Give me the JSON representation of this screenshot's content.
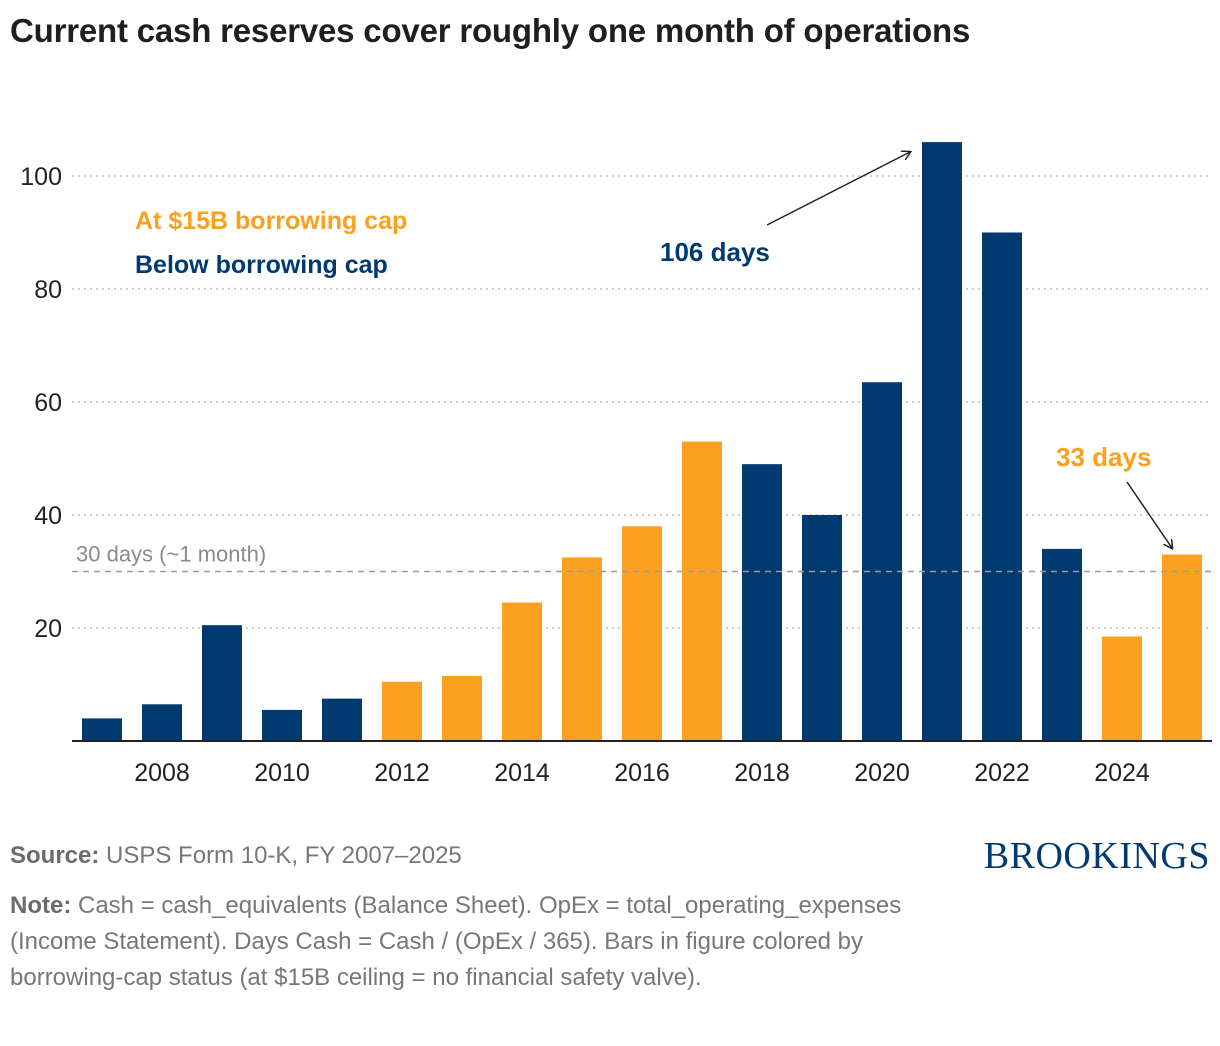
{
  "title": "Current cash reserves cover roughly one month of operations",
  "legend": {
    "capped_label": "At $15B borrowing cap",
    "below_label": "Below borrowing cap"
  },
  "colors": {
    "capped": "#FBA11F",
    "below": "#003A70",
    "grid": "#bdbdbd",
    "reference": "#9a9a9a",
    "axis": "#222222"
  },
  "reference_line": {
    "value": 30,
    "label": "30 days (~1 month)"
  },
  "annotations": [
    {
      "text": "106 days",
      "year": 2021,
      "value": 106,
      "color": "#003A70"
    },
    {
      "text": "33 days",
      "year": 2025,
      "value": 33,
      "color": "#FBA11F"
    }
  ],
  "source": {
    "label": "Source:",
    "text": "USPS Form 10-K, FY 2007–2025"
  },
  "note": {
    "label": "Note:",
    "text": "Cash = cash_equivalents (Balance Sheet). OpEx = total_operating_expenses (Income Statement). Days Cash = Cash / (OpEx / 365). Bars in figure colored by borrowing-cap status (at $15B ceiling = no financial safety valve)."
  },
  "logo": "BROOKINGS",
  "chart_data": {
    "type": "bar",
    "categories": [
      2007,
      2008,
      2009,
      2010,
      2011,
      2012,
      2013,
      2014,
      2015,
      2016,
      2017,
      2018,
      2019,
      2020,
      2021,
      2022,
      2023,
      2024,
      2025
    ],
    "values": [
      4,
      6.5,
      20.5,
      5.5,
      7.5,
      10.5,
      11.5,
      24.5,
      32.5,
      38,
      53,
      49,
      40,
      63.5,
      106,
      90,
      34,
      18.5,
      33
    ],
    "status": [
      "below",
      "below",
      "below",
      "below",
      "below",
      "capped",
      "capped",
      "capped",
      "capped",
      "capped",
      "capped",
      "below",
      "below",
      "below",
      "below",
      "below",
      "below",
      "capped",
      "capped"
    ],
    "x_tick_labels": [
      "2008",
      "2010",
      "2012",
      "2014",
      "2016",
      "2018",
      "2020",
      "2022",
      "2024"
    ],
    "y_ticks": [
      20,
      40,
      60,
      80,
      100
    ],
    "ylim": [
      0,
      110
    ],
    "xlabel": "",
    "ylabel": "",
    "grid": "horizontal dotted"
  }
}
